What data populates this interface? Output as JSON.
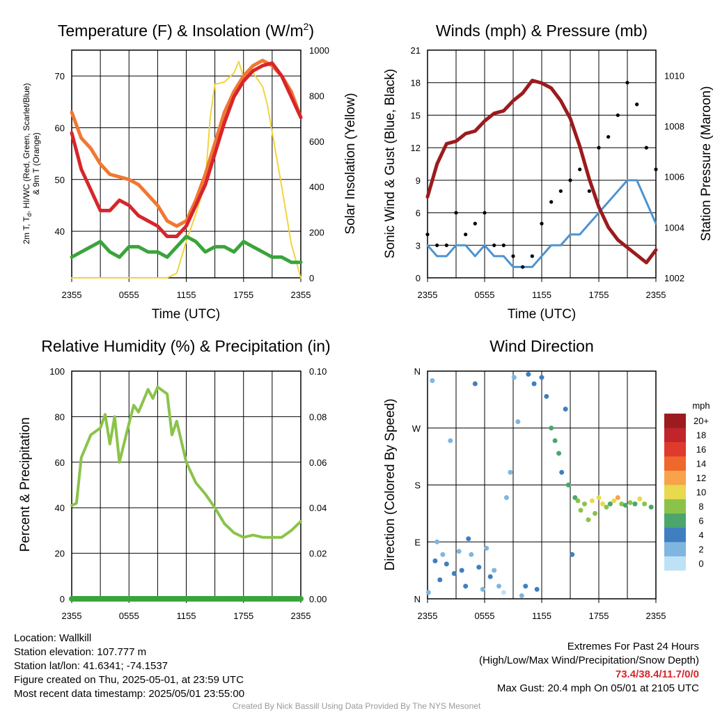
{
  "chart_data": [
    {
      "type": "line",
      "title": "Temperature (F) & Insolation (W/m2)",
      "title_main": "Temperature (F) & Insolation (W/m",
      "title_sup": "2",
      "title_close": ")",
      "xlabel": "Time (UTC)",
      "ylabel_lines": [
        "2m T, T",
        "d",
        ", HI/WC (Red, Green, Scarlet/Blue)",
        "& 9m T (Orange)"
      ],
      "ylabel_right": "Solar Insolation (Yellow)",
      "x_ticks": [
        "2355",
        "0555",
        "1155",
        "1755",
        "2355"
      ],
      "ylim": [
        31,
        75
      ],
      "y_ticks": [
        40,
        50,
        60,
        70
      ],
      "y2lim": [
        0,
        1000
      ],
      "y2_ticks": [
        0,
        200,
        400,
        600,
        800,
        1000
      ],
      "series": [
        {
          "name": "9m T",
          "color": "#f07832",
          "x": [
            0,
            1,
            2,
            3,
            4,
            5,
            6,
            7,
            8,
            9,
            10,
            11,
            12,
            13,
            14,
            15,
            16,
            17,
            18,
            19,
            20,
            21,
            22,
            23,
            24
          ],
          "values": [
            63,
            58,
            56,
            53,
            51,
            50.5,
            50,
            49,
            47,
            45,
            42,
            41,
            42,
            46,
            51,
            57,
            63,
            67,
            70,
            72,
            73,
            72,
            70,
            67,
            62
          ]
        },
        {
          "name": "2m T",
          "color": "#d7262b",
          "x": [
            0,
            1,
            2,
            3,
            4,
            5,
            6,
            7,
            8,
            9,
            10,
            11,
            12,
            13,
            14,
            15,
            16,
            17,
            18,
            19,
            20,
            21,
            22,
            23,
            24
          ],
          "values": [
            59,
            52,
            48,
            44,
            44,
            46,
            45,
            43,
            42,
            41,
            39,
            39,
            41,
            45,
            49,
            55,
            61,
            66,
            69,
            71,
            72,
            72.5,
            70,
            66,
            62
          ]
        },
        {
          "name": "Td",
          "color": "#3aa43c",
          "x": [
            0,
            1,
            2,
            3,
            4,
            5,
            6,
            7,
            8,
            9,
            10,
            11,
            12,
            13,
            14,
            15,
            16,
            17,
            18,
            19,
            20,
            21,
            22,
            23,
            24
          ],
          "values": [
            35,
            36,
            37,
            38,
            36,
            35,
            37,
            37,
            36,
            36,
            35,
            37,
            39,
            38,
            36,
            37,
            37,
            36,
            38,
            37,
            36,
            35,
            35,
            34,
            34
          ]
        },
        {
          "name": "Solar Insolation",
          "color": "#f2d43c",
          "axis": "right",
          "x": [
            0,
            1,
            2,
            3,
            4,
            5,
            6,
            7,
            8,
            9,
            10,
            11,
            11.5,
            12,
            13,
            14,
            14.5,
            15,
            16,
            17,
            17.5,
            18,
            19,
            20,
            20.5,
            21,
            22,
            23,
            24
          ],
          "values": [
            0,
            0,
            0,
            0,
            0,
            0,
            0,
            0,
            0,
            0,
            0,
            20,
            90,
            160,
            280,
            420,
            700,
            850,
            860,
            900,
            950,
            880,
            900,
            840,
            760,
            640,
            400,
            150,
            0
          ]
        }
      ]
    },
    {
      "type": "line",
      "title": "Winds (mph) & Pressure (mb)",
      "xlabel": "Time (UTC)",
      "ylabel": "Sonic Wind & Gust (Blue, Black)",
      "ylabel_right": "Station Pressure (Maroon)",
      "x_ticks": [
        "2355",
        "0555",
        "1155",
        "1755",
        "2355"
      ],
      "ylim": [
        0,
        21
      ],
      "y_ticks": [
        0,
        3,
        6,
        9,
        12,
        15,
        18,
        21
      ],
      "y2lim": [
        1002,
        1011
      ],
      "y2_ticks": [
        1002,
        1004,
        1006,
        1008,
        1010
      ],
      "series": [
        {
          "name": "Sonic Wind",
          "color": "#4d93d0",
          "x": [
            0,
            1,
            2,
            3,
            4,
            5,
            6,
            7,
            8,
            9,
            10,
            11,
            12,
            13,
            14,
            15,
            16,
            17,
            18,
            19,
            20,
            21,
            22,
            23,
            24
          ],
          "values": [
            3,
            2,
            2,
            3,
            3,
            2,
            3,
            2,
            2,
            1,
            1,
            1,
            2,
            3,
            3,
            4,
            4,
            5,
            6,
            7,
            8,
            9,
            9,
            7,
            5
          ]
        },
        {
          "name": "Gust",
          "color": "#000000",
          "marker": "dot",
          "x": [
            0,
            1,
            2,
            3,
            4,
            5,
            6,
            7,
            8,
            9,
            10,
            11,
            12,
            13,
            14,
            15,
            16,
            17,
            18,
            19,
            20,
            21,
            22,
            23,
            24
          ],
          "values": [
            4,
            3,
            3,
            6,
            4,
            5,
            6,
            3,
            3,
            2,
            1,
            2,
            5,
            7,
            8,
            9,
            10,
            8,
            12,
            13,
            15,
            18,
            16,
            12,
            10
          ]
        },
        {
          "name": "Station Pressure",
          "color": "#9b1b1e",
          "axis": "right",
          "x": [
            0,
            1,
            2,
            3,
            4,
            5,
            6,
            7,
            8,
            9,
            10,
            11,
            12,
            13,
            14,
            15,
            16,
            17,
            18,
            19,
            20,
            21,
            22,
            23,
            24
          ],
          "values": [
            1005.2,
            1006.5,
            1007.3,
            1007.4,
            1007.7,
            1007.8,
            1008.2,
            1008.5,
            1008.6,
            1009,
            1009.3,
            1009.8,
            1009.7,
            1009.5,
            1009,
            1008.3,
            1007.2,
            1005.9,
            1004.8,
            1004,
            1003.5,
            1003.2,
            1002.9,
            1002.6,
            1003.1
          ]
        }
      ]
    },
    {
      "type": "line",
      "title": "Relative Humidity (%) & Precipitation (in)",
      "xlabel": "",
      "ylabel": "Percent & Precipitation",
      "x_ticks": [
        "2355",
        "0555",
        "1155",
        "1755",
        "2355"
      ],
      "ylim": [
        0,
        100
      ],
      "y_ticks": [
        0,
        20,
        40,
        60,
        80,
        100
      ],
      "y2lim": [
        0,
        0.1
      ],
      "y2_ticks": [
        "0.00",
        "0.02",
        "0.04",
        "0.06",
        "0.08",
        "0.10"
      ],
      "series": [
        {
          "name": "Relative Humidity",
          "color": "#8bc34a",
          "x": [
            0,
            0.5,
            1,
            2,
            3,
            3.5,
            4,
            4.5,
            5,
            6,
            6.5,
            7,
            8,
            8.5,
            9,
            10,
            10.5,
            11,
            12,
            13,
            14,
            15,
            16,
            17,
            18,
            19,
            20,
            21,
            22,
            23,
            24
          ],
          "values": [
            41,
            42,
            62,
            72,
            75,
            81,
            68,
            80,
            60,
            77,
            85,
            82,
            92,
            88,
            93,
            90,
            72,
            78,
            60,
            51,
            46,
            40,
            33,
            29,
            27,
            28,
            27,
            27,
            27,
            30,
            34
          ]
        },
        {
          "name": "Precipitation",
          "color": "#3aa43c",
          "x": [
            0,
            24
          ],
          "values": [
            0,
            0
          ]
        }
      ]
    },
    {
      "type": "scatter",
      "title": "Wind Direction",
      "xlabel": "",
      "ylabel": "Direction (Colored By Speed)",
      "x_ticks": [
        "2355",
        "0555",
        "1155",
        "1755",
        "2355"
      ],
      "y_ticks": [
        "N",
        "E",
        "S",
        "W",
        "N"
      ],
      "ylim": [
        0,
        360
      ],
      "legend": {
        "title": "mph",
        "labels": [
          "20+",
          "18",
          "16",
          "14",
          "12",
          "10",
          "8",
          "6",
          "4",
          "2",
          "0"
        ],
        "colors": [
          "#9b1b1e",
          "#c0252b",
          "#e03a2e",
          "#f0672c",
          "#f7a34a",
          "#e8d94f",
          "#8bc34a",
          "#4aa66b",
          "#3f7fbf",
          "#7fb6e0",
          "#bde2f5"
        ]
      },
      "points": [
        [
          0.1,
          10,
          2
        ],
        [
          0.5,
          345,
          2
        ],
        [
          0.8,
          60,
          3
        ],
        [
          1.0,
          90,
          2
        ],
        [
          1.3,
          30,
          3
        ],
        [
          1.6,
          70,
          2
        ],
        [
          2.0,
          55,
          4
        ],
        [
          2.4,
          250,
          2
        ],
        [
          2.8,
          40,
          3
        ],
        [
          3.3,
          75,
          2
        ],
        [
          3.6,
          45,
          4
        ],
        [
          4.0,
          20,
          3
        ],
        [
          4.3,
          95,
          3
        ],
        [
          4.6,
          70,
          2
        ],
        [
          5.0,
          340,
          3
        ],
        [
          5.4,
          50,
          4
        ],
        [
          5.8,
          15,
          2
        ],
        [
          6.2,
          80,
          2
        ],
        [
          6.6,
          35,
          3
        ],
        [
          7.0,
          45,
          1
        ],
        [
          7.5,
          20,
          2
        ],
        [
          8.0,
          10,
          0
        ],
        [
          8.3,
          160,
          1
        ],
        [
          8.7,
          200,
          1
        ],
        [
          9.1,
          350,
          1
        ],
        [
          9.5,
          280,
          2
        ],
        [
          9.9,
          5,
          2
        ],
        [
          10.3,
          20,
          3
        ],
        [
          10.6,
          355,
          4
        ],
        [
          11.2,
          340,
          4
        ],
        [
          11.5,
          15,
          3
        ],
        [
          12.0,
          350,
          4
        ],
        [
          12.5,
          320,
          4
        ],
        [
          13.0,
          270,
          5
        ],
        [
          13.4,
          250,
          6
        ],
        [
          13.8,
          230,
          5
        ],
        [
          14.1,
          200,
          4
        ],
        [
          14.5,
          300,
          4
        ],
        [
          14.8,
          180,
          5
        ],
        [
          15.2,
          70,
          4
        ],
        [
          15.5,
          160,
          6
        ],
        [
          15.8,
          155,
          7
        ],
        [
          16.1,
          140,
          8
        ],
        [
          16.5,
          150,
          7
        ],
        [
          16.9,
          125,
          7
        ],
        [
          17.3,
          155,
          9
        ],
        [
          17.6,
          135,
          8
        ],
        [
          18.0,
          160,
          10
        ],
        [
          18.4,
          150,
          9
        ],
        [
          18.8,
          145,
          7
        ],
        [
          19.2,
          150,
          6
        ],
        [
          19.6,
          155,
          10
        ],
        [
          20.0,
          160,
          11
        ],
        [
          20.4,
          150,
          8
        ],
        [
          20.8,
          148,
          6
        ],
        [
          21.3,
          152,
          7
        ],
        [
          21.8,
          150,
          6
        ],
        [
          22.3,
          158,
          9
        ],
        [
          22.8,
          150,
          7
        ],
        [
          23.5,
          145,
          5
        ]
      ]
    }
  ],
  "footer": {
    "location": "Location: Wallkill",
    "elevation": "Station elevation: 107.777 m",
    "latlon": "Station lat/lon: 41.6341; -74.1537",
    "created": "Figure created on Thu, 2025-05-01, at 23:59 UTC",
    "recent": "Most recent data timestamp: 2025/05/01 23:55:00",
    "extremes_title": "Extremes For Past 24 Hours",
    "extremes_subtitle": "(High/Low/Max Wind/Precipitation/Snow Depth)",
    "extremes_values": "73.4/38.4/11.7/0/0",
    "extremes_color": "#d7262b",
    "max_gust": "Max Gust: 20.4 mph On 05/01 at 2105 UTC",
    "credit": "Created By Nick Bassill Using Data Provided By The NYS Mesonet"
  }
}
